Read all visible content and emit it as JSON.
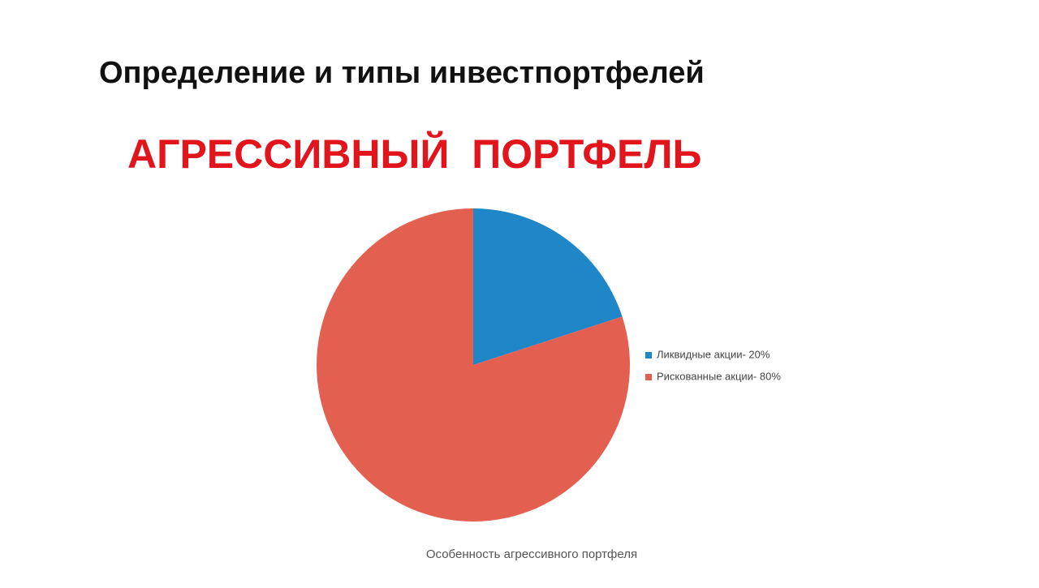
{
  "heading": "Определение и типы инвестпортфелей",
  "caption": "Особенность агрессивного портфеля",
  "chart_data": {
    "type": "pie",
    "title": "АГРЕССИВНЫЙ  ПОРТФЕЛЬ",
    "categories": [
      "Ликвидные акции- 20%",
      "Рискованные акции- 80%"
    ],
    "values": [
      20,
      80
    ],
    "colors": [
      "#1f87c8",
      "#e35f50"
    ],
    "legend": "right"
  }
}
